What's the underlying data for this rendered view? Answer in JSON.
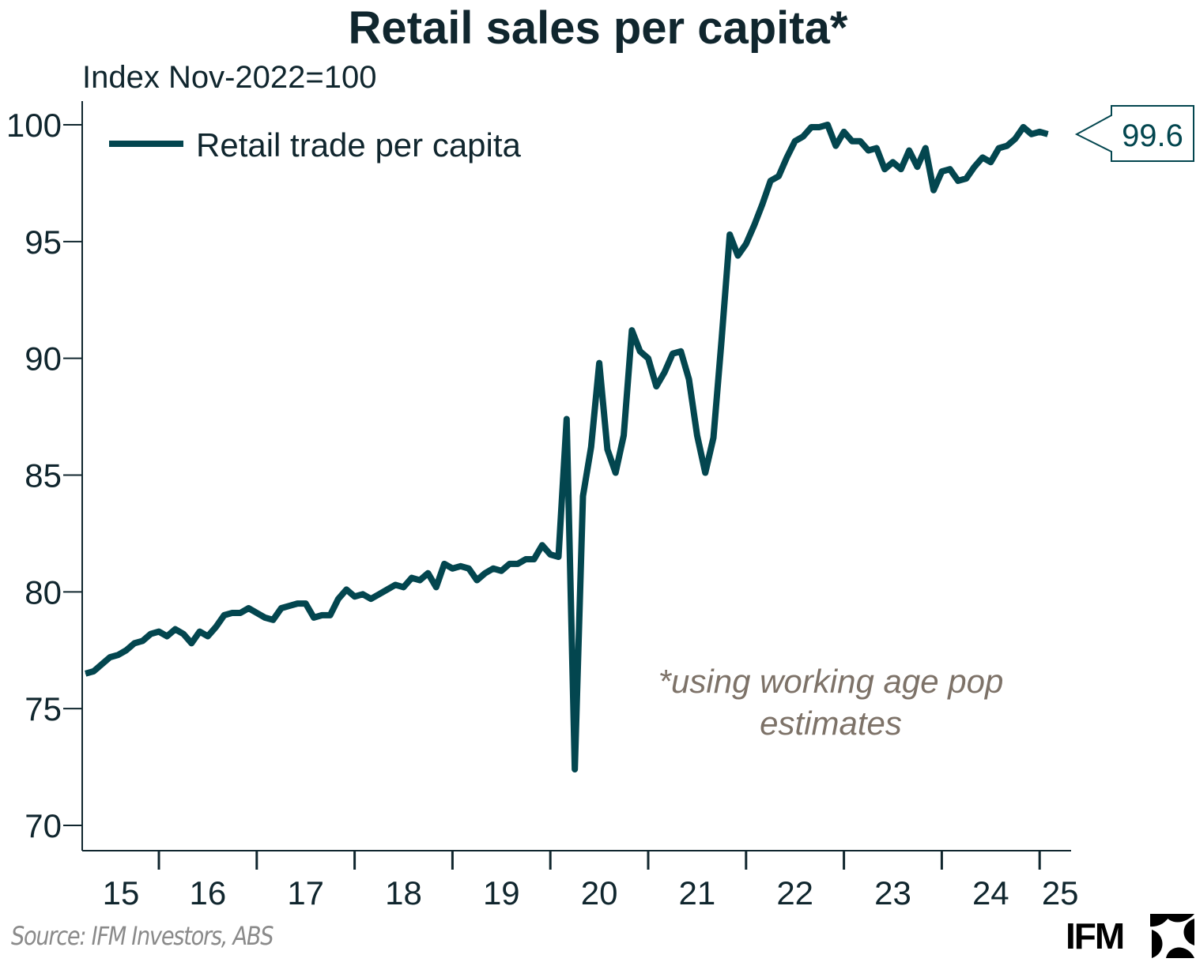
{
  "chart_data": {
    "type": "line",
    "title": "Retail sales per capita*",
    "subtitle": "Index Nov-2022=100",
    "xlabel": "",
    "ylabel": "Index Nov-2022=100",
    "ylim": [
      70,
      100
    ],
    "yticks": [
      70,
      75,
      80,
      85,
      90,
      95,
      100
    ],
    "xtick_labels": [
      "15",
      "16",
      "17",
      "18",
      "19",
      "20",
      "21",
      "22",
      "23",
      "24",
      "25"
    ],
    "x_start": "2015-04",
    "x_end": "2025-02",
    "frequency": "monthly",
    "grid": false,
    "legend_position": "top-left",
    "series": [
      {
        "name": "Retail trade per capita",
        "color": "#03464f",
        "values": [
          76.5,
          76.6,
          76.9,
          77.2,
          77.3,
          77.5,
          77.8,
          77.9,
          78.2,
          78.3,
          78.1,
          78.4,
          78.2,
          77.8,
          78.3,
          78.1,
          78.5,
          79.0,
          79.1,
          79.1,
          79.3,
          79.1,
          78.9,
          78.8,
          79.3,
          79.4,
          79.5,
          79.5,
          78.9,
          79.0,
          79.0,
          79.7,
          80.1,
          79.8,
          79.9,
          79.7,
          79.9,
          80.1,
          80.3,
          80.2,
          80.6,
          80.5,
          80.8,
          80.2,
          81.2,
          81.0,
          81.1,
          81.0,
          80.5,
          80.8,
          81.0,
          80.9,
          81.2,
          81.2,
          81.4,
          81.4,
          82.0,
          81.6,
          81.5,
          87.4,
          72.4,
          84.1,
          86.2,
          89.8,
          86.1,
          85.1,
          86.7,
          91.2,
          90.3,
          90.0,
          88.8,
          89.4,
          90.2,
          90.3,
          89.1,
          86.7,
          85.1,
          86.6,
          90.8,
          95.3,
          94.4,
          94.9,
          95.7,
          96.6,
          97.6,
          97.8,
          98.6,
          99.3,
          99.5,
          99.9,
          99.9,
          100.0,
          99.1,
          99.7,
          99.3,
          99.3,
          98.9,
          99.0,
          98.1,
          98.4,
          98.1,
          98.9,
          98.2,
          99.0,
          97.2,
          98.0,
          98.1,
          97.6,
          97.7,
          98.2,
          98.6,
          98.4,
          99.0,
          99.1,
          99.4,
          99.9,
          99.6,
          99.7,
          99.6
        ]
      }
    ],
    "last_value_label": "99.6",
    "annotation": [
      "*using working age pop",
      "estimates"
    ]
  },
  "footer": {
    "source": "Source: IFM Investors, ABS",
    "logo_text": "IFM"
  }
}
